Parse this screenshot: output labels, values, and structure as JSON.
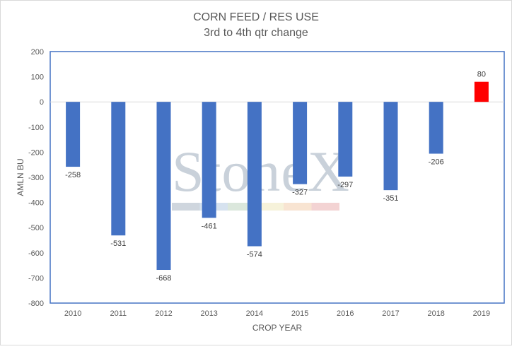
{
  "chart_data": {
    "type": "bar",
    "title": "CORN FEED / RES USE",
    "subtitle": "3rd to 4th qtr change",
    "xlabel": "CROP YEAR",
    "ylabel": "AMLN BU",
    "categories": [
      "2010",
      "2011",
      "2012",
      "2013",
      "2014",
      "2015",
      "2016",
      "2017",
      "2018",
      "2019"
    ],
    "values": [
      -258,
      -531,
      -668,
      -461,
      -574,
      -327,
      -297,
      -351,
      -206,
      80
    ],
    "data_labels": [
      "-258",
      "-531",
      "-668",
      "-461",
      "-574",
      "-327",
      "-297",
      "-351",
      "-206",
      "80"
    ],
    "bar_colors": [
      "#4472C4",
      "#4472C4",
      "#4472C4",
      "#4472C4",
      "#4472C4",
      "#4472C4",
      "#4472C4",
      "#4472C4",
      "#4472C4",
      "#FF0000"
    ],
    "ylim": [
      -800,
      200
    ],
    "yticks": [
      200,
      100,
      0,
      -100,
      -200,
      -300,
      -400,
      -500,
      -600,
      -700,
      -800
    ],
    "ytick_labels": [
      "200",
      "100",
      "0",
      "-100",
      "-200",
      "-300",
      "-400",
      "-500",
      "-600",
      "-700",
      "-800"
    ],
    "grid": false,
    "legend": "none",
    "plot_border_color": "#4472C4",
    "axis_color": "#D9D9D9"
  },
  "watermark": {
    "text": "StoneX",
    "tm": "™",
    "stripe_colors": [
      "#cfd6de",
      "#d6e2ef",
      "#dbe7dc",
      "#f6f2da",
      "#f8e4d2",
      "#f3d3d3"
    ]
  }
}
